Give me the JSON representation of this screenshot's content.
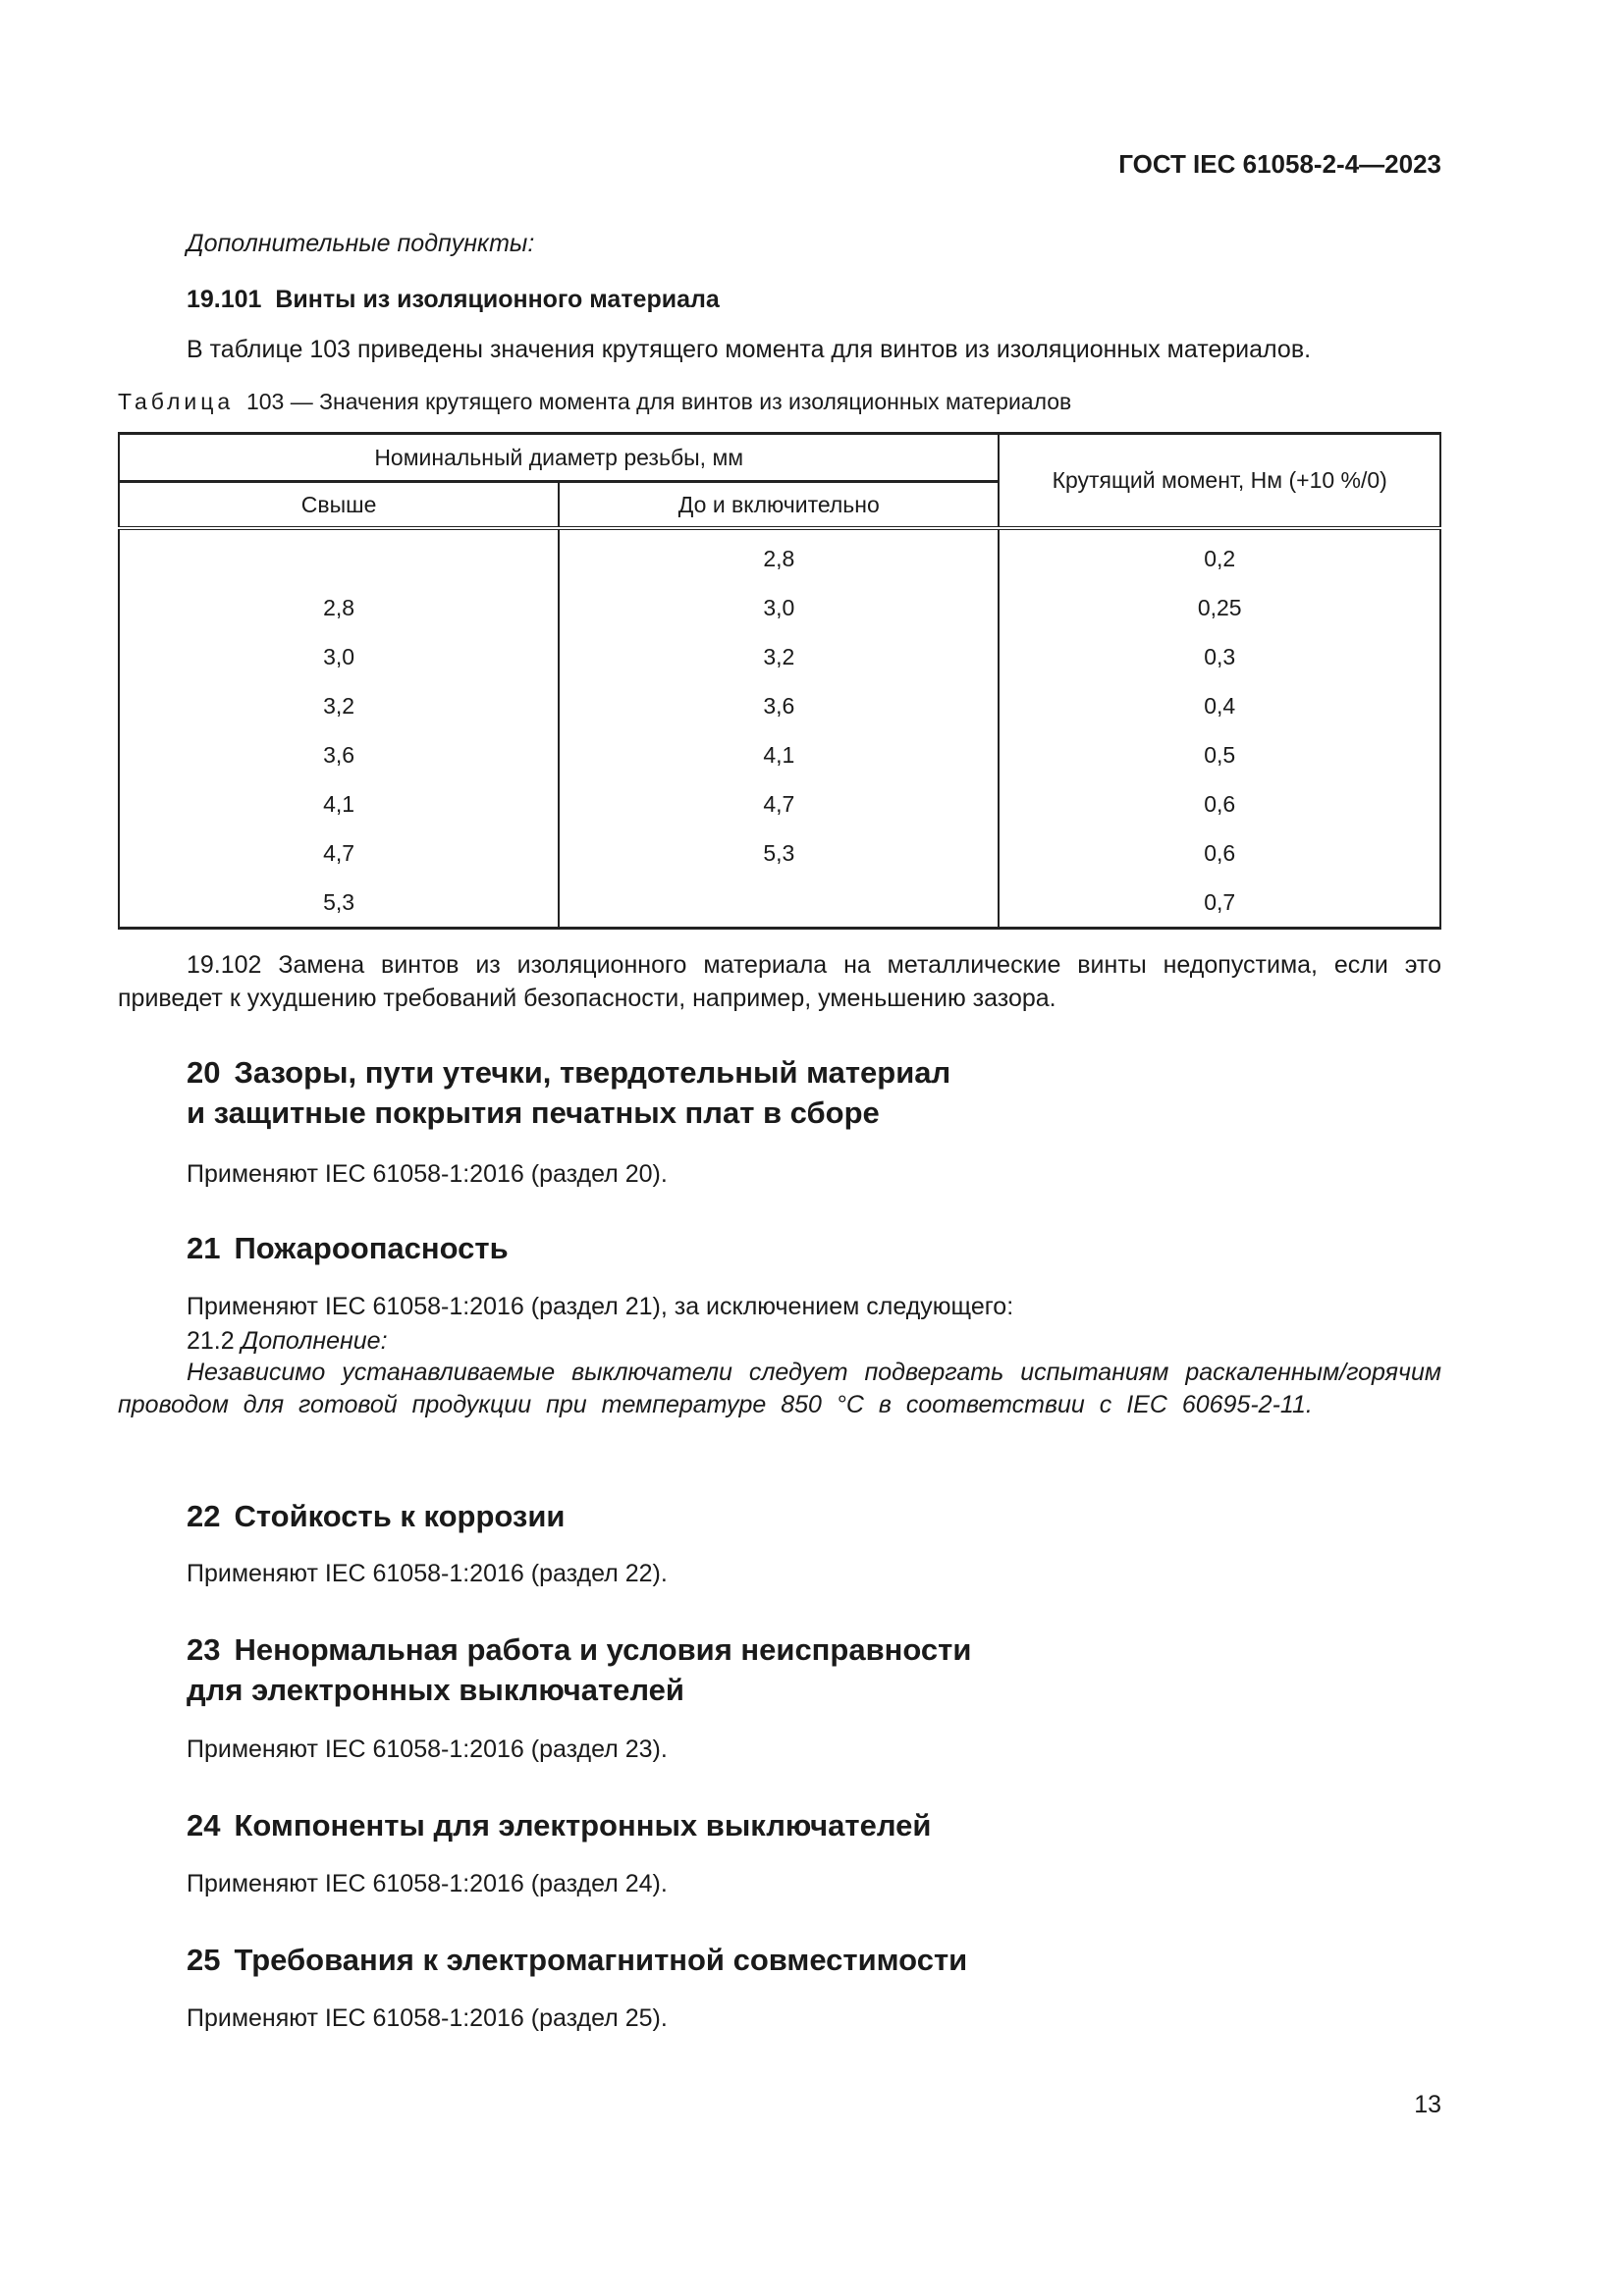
{
  "header": {
    "doc_id": "ГОСТ IEC 61058-2-4—2023"
  },
  "intro": {
    "additional": "Дополнительные подпункты:"
  },
  "clause_19_101": {
    "number": "19.101",
    "title": "Винты из изоляционного материала",
    "text": "В таблице 103 приведены значения крутящего момента для винтов из изоляционных материалов."
  },
  "table": {
    "caption_label": "Таблица",
    "caption": "103 — Значения крутящего момента для винтов из изоляционных материалов",
    "group_header": "Номинальный диаметр резьбы, мм",
    "columns": [
      "Свыше",
      "До и включительно",
      "Крутящий момент, Нм (+10 %/0)"
    ],
    "rows": [
      [
        "",
        "2,8",
        "0,2"
      ],
      [
        "2,8",
        "3,0",
        "0,25"
      ],
      [
        "3,0",
        "3,2",
        "0,3"
      ],
      [
        "3,2",
        "3,6",
        "0,4"
      ],
      [
        "3,6",
        "4,1",
        "0,5"
      ],
      [
        "4,1",
        "4,7",
        "0,6"
      ],
      [
        "4,7",
        "5,3",
        "0,6"
      ],
      [
        "5,3",
        "",
        "0,7"
      ]
    ]
  },
  "clause_19_102": {
    "text": "19.102 Замена винтов из изоляционного материала на металлические винты недопустима, если это приведет к ухудшению требований безопасности, например, уменьшению зазора."
  },
  "sections": [
    {
      "number": "20",
      "title_line1": "Зазоры, пути утечки, твердотельный материал",
      "title_line2": "и защитные покрытия печатных плат в сборе",
      "text": "Применяют IEC 61058-1:2016 (раздел 20)."
    },
    {
      "number": "21",
      "title_line1": "Пожароопасность",
      "text": "Применяют IEC 61058-1:2016 (раздел 21), за исключением следующего:",
      "sub_number": "21.2",
      "sub_label": "Дополнение:",
      "sub_text": "Независимо устанавливаемые выключатели следует подвергать испытаниям раскаленным/горячим проводом для готовой продукции при температуре 850 °С в соответствии с IEC 60695-2-11."
    },
    {
      "number": "22",
      "title_line1": "Стойкость к коррозии",
      "text": "Применяют IEC 61058-1:2016 (раздел 22)."
    },
    {
      "number": "23",
      "title_line1": "Ненормальная работа и условия неисправности",
      "title_line2": "для электронных выключателей",
      "text": "Применяют IEC 61058-1:2016 (раздел 23)."
    },
    {
      "number": "24",
      "title_line1": "Компоненты для электронных выключателей",
      "text": "Применяют IEC 61058-1:2016 (раздел 24)."
    },
    {
      "number": "25",
      "title_line1": "Требования к электромагнитной совместимости",
      "text": "Применяют IEC 61058-1:2016 (раздел 25)."
    }
  ],
  "page_number": "13"
}
